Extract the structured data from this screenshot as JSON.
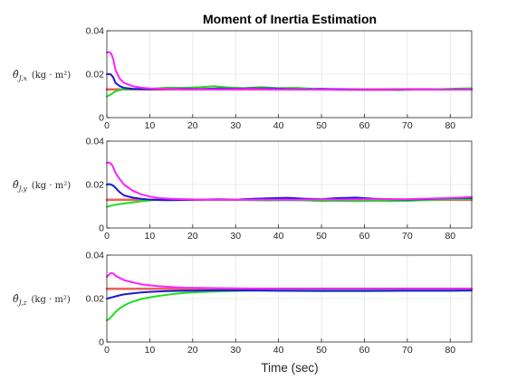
{
  "title": "Moment of Inertia Estimation",
  "xlabel": "Time (sec)",
  "colors": {
    "reference": "#e8645a",
    "blue": "#1a1ad6",
    "green": "#22dd22",
    "magenta": "#ff22ff"
  },
  "chart_data": [
    {
      "type": "line",
      "ylabel": {
        "prefix": "θ̂",
        "sub": "J,x",
        "unit": "(kg · m²)"
      },
      "xlim": [
        0,
        85
      ],
      "ylim": [
        0,
        0.04
      ],
      "xticks": [
        "0",
        "10",
        "20",
        "30",
        "40",
        "50",
        "60",
        "70",
        "80"
      ],
      "yticks": [
        "0",
        "0.02",
        "0.04"
      ],
      "grid": true,
      "series": [
        {
          "color": "green",
          "x": [
            0,
            0.5,
            1,
            2,
            3,
            4,
            6,
            10,
            14,
            18,
            22,
            25,
            28,
            32,
            36,
            40,
            44,
            48,
            52,
            56,
            60,
            64,
            68,
            72,
            76,
            80,
            85
          ],
          "y": [
            0.0098,
            0.0102,
            0.0108,
            0.0121,
            0.0127,
            0.013,
            0.0131,
            0.0133,
            0.0138,
            0.0137,
            0.0141,
            0.0145,
            0.0139,
            0.0136,
            0.014,
            0.0136,
            0.0137,
            0.0133,
            0.0131,
            0.0128,
            0.0127,
            0.0128,
            0.0126,
            0.0129,
            0.0131,
            0.0133,
            0.0135
          ]
        },
        {
          "color": "blue",
          "x": [
            0,
            0.5,
            1,
            1.5,
            2,
            3,
            4,
            6,
            10,
            14,
            18,
            22,
            26,
            30,
            34,
            38,
            42,
            46,
            50,
            54,
            58,
            62,
            66,
            70,
            74,
            78,
            82,
            85
          ],
          "y": [
            0.02,
            0.0201,
            0.0198,
            0.0185,
            0.016,
            0.0145,
            0.0137,
            0.0133,
            0.0131,
            0.0132,
            0.0133,
            0.0132,
            0.0134,
            0.0133,
            0.0135,
            0.0134,
            0.0132,
            0.013,
            0.0132,
            0.0131,
            0.0129,
            0.0128,
            0.0129,
            0.013,
            0.013,
            0.0129,
            0.013,
            0.013
          ]
        },
        {
          "color": "magenta",
          "x": [
            0,
            0.5,
            1,
            1.5,
            2,
            3,
            4,
            6,
            8,
            10,
            14,
            18,
            22,
            26,
            30,
            34,
            38,
            42,
            46,
            50,
            54,
            58,
            62,
            66,
            70,
            74,
            78,
            82,
            85
          ],
          "y": [
            0.03,
            0.0302,
            0.0296,
            0.027,
            0.022,
            0.018,
            0.016,
            0.0145,
            0.0138,
            0.0134,
            0.0132,
            0.0131,
            0.0131,
            0.013,
            0.0131,
            0.0132,
            0.0131,
            0.013,
            0.0129,
            0.0129,
            0.0128,
            0.0128,
            0.0128,
            0.0128,
            0.0129,
            0.0129,
            0.0129,
            0.0129,
            0.013
          ]
        },
        {
          "color": "reference",
          "x": [
            0,
            85
          ],
          "y": [
            0.013,
            0.013
          ]
        }
      ]
    },
    {
      "type": "line",
      "ylabel": {
        "prefix": "θ̂",
        "sub": "J,y",
        "unit": "(kg · m²)"
      },
      "xlim": [
        0,
        85
      ],
      "ylim": [
        0,
        0.04
      ],
      "xticks": [
        "0",
        "10",
        "20",
        "30",
        "40",
        "50",
        "60",
        "70",
        "80"
      ],
      "yticks": [
        "0",
        "0.02",
        "0.04"
      ],
      "grid": true,
      "series": [
        {
          "color": "green",
          "x": [
            0,
            0.5,
            1,
            2,
            3,
            4,
            6,
            8,
            10,
            12,
            15,
            18,
            22,
            26,
            30,
            34,
            38,
            42,
            46,
            50,
            54,
            58,
            62,
            66,
            70,
            74,
            78,
            82,
            85
          ],
          "y": [
            0.0098,
            0.01,
            0.0103,
            0.0107,
            0.011,
            0.0113,
            0.0118,
            0.0123,
            0.0127,
            0.013,
            0.0131,
            0.0132,
            0.0131,
            0.013,
            0.013,
            0.0128,
            0.0127,
            0.0128,
            0.0127,
            0.0124,
            0.0125,
            0.0124,
            0.0125,
            0.0124,
            0.0125,
            0.0128,
            0.0131,
            0.0133,
            0.0133
          ]
        },
        {
          "color": "blue",
          "x": [
            0,
            0.5,
            1,
            1.5,
            2,
            3,
            4,
            6,
            8,
            10,
            14,
            18,
            22,
            26,
            30,
            34,
            38,
            42,
            46,
            50,
            54,
            58,
            62,
            66,
            70,
            74,
            78,
            82,
            85
          ],
          "y": [
            0.02,
            0.0202,
            0.02,
            0.0195,
            0.0185,
            0.0165,
            0.015,
            0.014,
            0.0134,
            0.0131,
            0.0128,
            0.0129,
            0.0131,
            0.0132,
            0.0131,
            0.0134,
            0.0137,
            0.0139,
            0.0135,
            0.0133,
            0.0138,
            0.014,
            0.0135,
            0.0132,
            0.0131,
            0.0133,
            0.0136,
            0.0138,
            0.0139
          ]
        },
        {
          "color": "magenta",
          "x": [
            0,
            0.5,
            1,
            1.5,
            2,
            3,
            4,
            6,
            8,
            10,
            12,
            15,
            18,
            22,
            26,
            30,
            34,
            38,
            42,
            46,
            50,
            54,
            58,
            62,
            66,
            70,
            74,
            78,
            82,
            85
          ],
          "y": [
            0.03,
            0.0302,
            0.0296,
            0.028,
            0.0255,
            0.0225,
            0.02,
            0.0172,
            0.0155,
            0.0145,
            0.0138,
            0.0134,
            0.0132,
            0.0131,
            0.013,
            0.0131,
            0.013,
            0.0131,
            0.013,
            0.0131,
            0.0132,
            0.0131,
            0.0132,
            0.0132,
            0.0133,
            0.0133,
            0.0135,
            0.0137,
            0.014,
            0.0143
          ]
        },
        {
          "color": "reference",
          "x": [
            0,
            85
          ],
          "y": [
            0.013,
            0.013
          ]
        }
      ]
    },
    {
      "type": "line",
      "ylabel": {
        "prefix": "θ̂",
        "sub": "J,z",
        "unit": "(kg · m²)"
      },
      "xlim": [
        0,
        85
      ],
      "ylim": [
        0,
        0.04
      ],
      "xticks": [
        "0",
        "10",
        "20",
        "30",
        "40",
        "50",
        "60",
        "70",
        "80"
      ],
      "yticks": [
        "0",
        "0.02",
        "0.04"
      ],
      "grid": true,
      "series": [
        {
          "color": "green",
          "x": [
            0,
            0.5,
            1,
            2,
            3,
            4,
            5,
            6,
            8,
            10,
            12,
            15,
            18,
            22,
            26,
            30,
            35,
            40,
            50,
            60,
            70,
            80,
            85
          ],
          "y": [
            0.01,
            0.0105,
            0.0115,
            0.0138,
            0.0155,
            0.0168,
            0.0178,
            0.0186,
            0.0198,
            0.0206,
            0.0212,
            0.022,
            0.0226,
            0.023,
            0.0233,
            0.0235,
            0.0237,
            0.0238,
            0.0239,
            0.0239,
            0.0239,
            0.0239,
            0.0239
          ]
        },
        {
          "color": "blue",
          "x": [
            0,
            0.5,
            1,
            2,
            3,
            4,
            6,
            8,
            10,
            14,
            18,
            22,
            26,
            30,
            35,
            40,
            50,
            60,
            70,
            80,
            85
          ],
          "y": [
            0.02,
            0.0202,
            0.0205,
            0.021,
            0.0215,
            0.0219,
            0.0224,
            0.0228,
            0.0231,
            0.0234,
            0.0236,
            0.0237,
            0.0238,
            0.0238,
            0.0237,
            0.0236,
            0.0235,
            0.0235,
            0.0236,
            0.0236,
            0.0237
          ]
        },
        {
          "color": "magenta",
          "x": [
            0,
            0.5,
            1,
            1.5,
            2,
            3,
            4,
            6,
            8,
            10,
            12,
            15,
            18,
            22,
            26,
            30,
            35,
            40,
            50,
            60,
            70,
            80,
            85
          ],
          "y": [
            0.03,
            0.031,
            0.0318,
            0.0316,
            0.0305,
            0.0295,
            0.0285,
            0.0275,
            0.0266,
            0.0261,
            0.0257,
            0.0253,
            0.025,
            0.0249,
            0.0248,
            0.0247,
            0.0246,
            0.0246,
            0.0246,
            0.0246,
            0.0246,
            0.0246,
            0.0246
          ]
        },
        {
          "color": "reference",
          "x": [
            0,
            85
          ],
          "y": [
            0.0245,
            0.0245
          ]
        }
      ]
    }
  ]
}
